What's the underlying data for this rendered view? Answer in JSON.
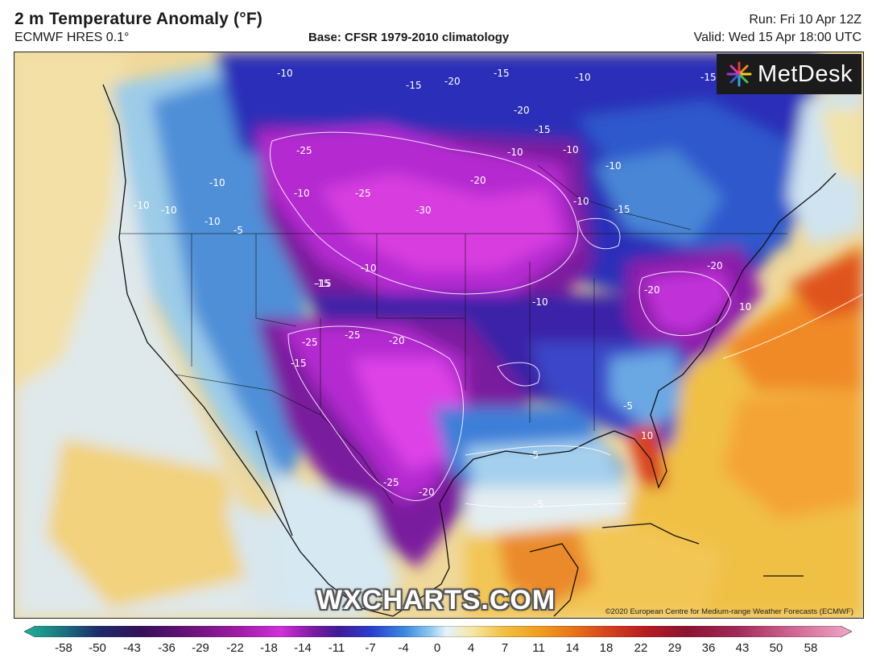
{
  "header": {
    "title": "2 m Temperature Anomaly (°F)",
    "model": "ECMWF HRES 0.1°",
    "base": "Base: CFSR 1979-2010 climatology",
    "run": "Run: Fri 10 Apr 12Z",
    "valid": "Valid: Wed 15 Apr 18:00 UTC"
  },
  "branding": {
    "logo_text": "MetDesk",
    "logo_icon": "metdesk-starburst-icon",
    "watermark": "WXCHARTS.COM",
    "copyright": "©2020 European Centre for Medium-range Weather Forecasts (ECMWF)"
  },
  "colorbar": {
    "ticks": [
      "-58",
      "-50",
      "-43",
      "-36",
      "-29",
      "-22",
      "-18",
      "-14",
      "-11",
      "-7",
      "-4",
      "0",
      "4",
      "7",
      "11",
      "14",
      "18",
      "22",
      "29",
      "36",
      "43",
      "50",
      "58"
    ],
    "colors": [
      "#1fb39a",
      "#1a6e7e",
      "#1d2c6a",
      "#351058",
      "#6a137a",
      "#a01ca6",
      "#d030d8",
      "#7a1aa0",
      "#3f1c96",
      "#2a3ed0",
      "#3c8ae0",
      "#8cc8ee",
      "#e6f2fa",
      "#f5e8a8",
      "#f0c040",
      "#f0a020",
      "#e87818",
      "#d8481c",
      "#b81c22",
      "#8c1430",
      "#a02858",
      "#d06894",
      "#f0a8c8"
    ]
  },
  "map_labels": [
    {
      "id": "c1",
      "text": "-10"
    },
    {
      "id": "c2",
      "text": "-15"
    },
    {
      "id": "c3",
      "text": "-20"
    },
    {
      "id": "c4",
      "text": "-15"
    },
    {
      "id": "c5",
      "text": "-10"
    },
    {
      "id": "c6",
      "text": "-15"
    },
    {
      "id": "c7",
      "text": "-20"
    },
    {
      "id": "c8",
      "text": "-15"
    },
    {
      "id": "c9",
      "text": "-10"
    },
    {
      "id": "c10",
      "text": "-25"
    },
    {
      "id": "c11",
      "text": "-10"
    },
    {
      "id": "c12",
      "text": "-10"
    },
    {
      "id": "c13",
      "text": "-10"
    },
    {
      "id": "c14",
      "text": "-25"
    },
    {
      "id": "c15",
      "text": "-30"
    },
    {
      "id": "c16",
      "text": "-20"
    },
    {
      "id": "c17",
      "text": "-10"
    },
    {
      "id": "c18",
      "text": "-15"
    },
    {
      "id": "c19",
      "text": "-10"
    },
    {
      "id": "c20",
      "text": "-15"
    },
    {
      "id": "c21",
      "text": "-20"
    },
    {
      "id": "c22",
      "text": "-20"
    },
    {
      "id": "c23",
      "text": "-10"
    },
    {
      "id": "c24",
      "text": "-25"
    },
    {
      "id": "c25",
      "text": "-25"
    },
    {
      "id": "c26",
      "text": "-20"
    },
    {
      "id": "c27",
      "text": "-15"
    },
    {
      "id": "c28",
      "text": "-25"
    },
    {
      "id": "c29",
      "text": "-20"
    },
    {
      "id": "c30",
      "text": "-5"
    },
    {
      "id": "c31",
      "text": "-10"
    },
    {
      "id": "c32",
      "text": "-15"
    },
    {
      "id": "c33",
      "text": "-5"
    },
    {
      "id": "c34",
      "text": "10"
    },
    {
      "id": "c35",
      "text": "10"
    },
    {
      "id": "c36",
      "text": "-10"
    },
    {
      "id": "c37",
      "text": "-10"
    },
    {
      "id": "c38",
      "text": "-5"
    },
    {
      "id": "c39",
      "text": "-10"
    },
    {
      "id": "c40",
      "text": "-5"
    }
  ]
}
